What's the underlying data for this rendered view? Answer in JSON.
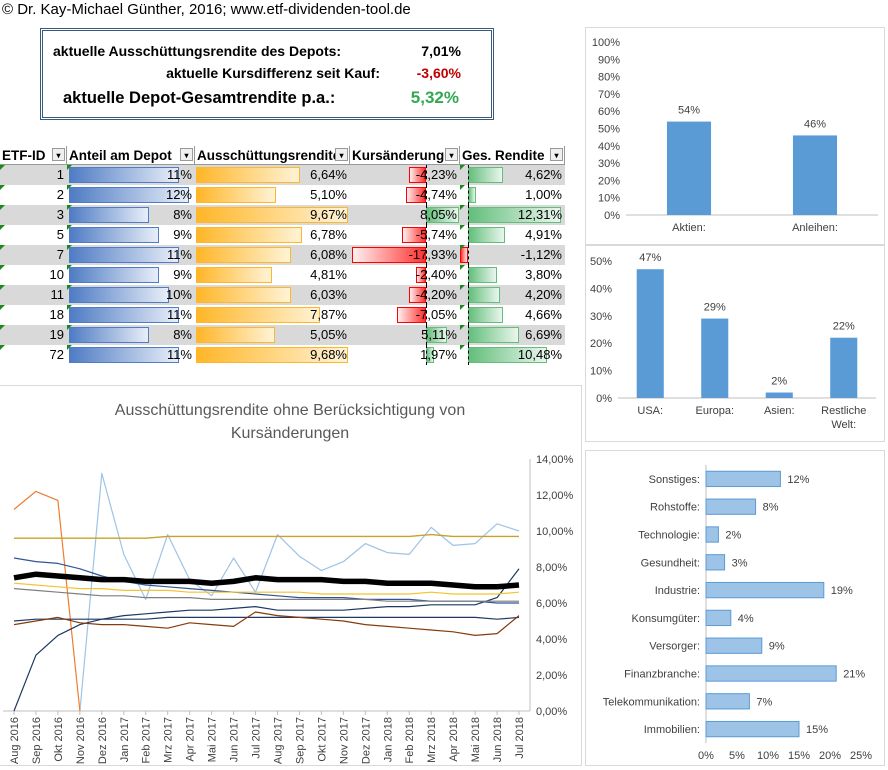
{
  "copyright": "© Dr. Kay-Michael Günther, 2016; www.etf-dividenden-tool.de",
  "summary": {
    "r1_label": "aktuelle Ausschüttungsrendite des Depots:",
    "r1_value": "7,01%",
    "r2_label": "aktuelle Kursdifferenz seit Kauf:",
    "r2_value": "-3,60%",
    "r3_label": "aktuelle Depot-Gesamtrendite p.a.:",
    "r3_value": "5,32%",
    "colors": {
      "negative": "#c00000",
      "positive": "#33a852"
    }
  },
  "table": {
    "headers": [
      "ETF-ID",
      "Anteil am Depot",
      "Ausschüttungsrendite",
      "Kursänderung",
      "Ges. Rendite"
    ],
    "rows": [
      {
        "id": "1",
        "anteil": "11%",
        "anteil_v": 11,
        "aus": "6,64%",
        "aus_v": 6.64,
        "kurs": "-4,23%",
        "kurs_v": -4.23,
        "ges": "4,62%",
        "ges_v": 4.62
      },
      {
        "id": "2",
        "anteil": "12%",
        "anteil_v": 12,
        "aus": "5,10%",
        "aus_v": 5.1,
        "kurs": "-4,74%",
        "kurs_v": -4.74,
        "ges": "1,00%",
        "ges_v": 1.0
      },
      {
        "id": "3",
        "anteil": "8%",
        "anteil_v": 8,
        "aus": "9,67%",
        "aus_v": 9.67,
        "kurs": "8,05%",
        "kurs_v": 8.05,
        "ges": "12,31%",
        "ges_v": 12.31
      },
      {
        "id": "5",
        "anteil": "9%",
        "anteil_v": 9,
        "aus": "6,78%",
        "aus_v": 6.78,
        "kurs": "-5,74%",
        "kurs_v": -5.74,
        "ges": "4,91%",
        "ges_v": 4.91
      },
      {
        "id": "7",
        "anteil": "11%",
        "anteil_v": 11,
        "aus": "6,08%",
        "aus_v": 6.08,
        "kurs": "-17,93%",
        "kurs_v": -17.93,
        "ges": "-1,12%",
        "ges_v": -1.12
      },
      {
        "id": "10",
        "anteil": "9%",
        "anteil_v": 9,
        "aus": "4,81%",
        "aus_v": 4.81,
        "kurs": "-2,40%",
        "kurs_v": -2.4,
        "ges": "3,80%",
        "ges_v": 3.8
      },
      {
        "id": "11",
        "anteil": "10%",
        "anteil_v": 10,
        "aus": "6,03%",
        "aus_v": 6.03,
        "kurs": "-4,20%",
        "kurs_v": -4.2,
        "ges": "4,20%",
        "ges_v": 4.2
      },
      {
        "id": "18",
        "anteil": "11%",
        "anteil_v": 11,
        "aus": "7,87%",
        "aus_v": 7.87,
        "kurs": "-7,05%",
        "kurs_v": -7.05,
        "ges": "4,66%",
        "ges_v": 4.66
      },
      {
        "id": "19",
        "anteil": "8%",
        "anteil_v": 8,
        "aus": "5,05%",
        "aus_v": 5.05,
        "kurs": "5,11%",
        "kurs_v": 5.11,
        "ges": "6,69%",
        "ges_v": 6.69
      },
      {
        "id": "72",
        "anteil": "11%",
        "anteil_v": 11,
        "aus": "9,68%",
        "aus_v": 9.68,
        "kurs": "1,97%",
        "kurs_v": 1.97,
        "ges": "10,48%",
        "ges_v": 10.48
      }
    ]
  },
  "chart_data": [
    {
      "type": "bar",
      "categories": [
        "Aktien:",
        "Anleihen:"
      ],
      "values": [
        54,
        46
      ],
      "data_labels": [
        "54%",
        "46%"
      ],
      "yticks": [
        "0%",
        "10%",
        "20%",
        "30%",
        "40%",
        "50%",
        "60%",
        "70%",
        "80%",
        "90%",
        "100%"
      ],
      "ylim": [
        0,
        100
      ],
      "color": "#5b9bd5"
    },
    {
      "type": "bar",
      "categories": [
        "USA:",
        "Europa:",
        "Asien:",
        "Restliche Welt:"
      ],
      "values": [
        47,
        29,
        2,
        22
      ],
      "data_labels": [
        "47%",
        "29%",
        "2%",
        "22%"
      ],
      "yticks": [
        "0%",
        "10%",
        "20%",
        "30%",
        "40%",
        "50%"
      ],
      "ylim": [
        0,
        50
      ],
      "color": "#5b9bd5"
    },
    {
      "type": "bar",
      "orientation": "horizontal",
      "categories": [
        "Sonstiges:",
        "Rohstoffe:",
        "Technologie:",
        "Gesundheit:",
        "Industrie:",
        "Konsumgüter:",
        "Versorger:",
        "Finanzbranche:",
        "Telekommunikation:",
        "Immobilien:"
      ],
      "values": [
        12,
        8,
        2,
        3,
        19,
        4,
        9,
        21,
        7,
        15
      ],
      "data_labels": [
        "12%",
        "8%",
        "2%",
        "3%",
        "19%",
        "4%",
        "9%",
        "21%",
        "7%",
        "15%"
      ],
      "xticks": [
        "0%",
        "5%",
        "10%",
        "15%",
        "20%",
        "25%"
      ],
      "xlim": [
        0,
        25
      ],
      "color": "#9dc3e6"
    },
    {
      "type": "line",
      "title": "Ausschüttungsrendite ohne Berücksichtigung von Kursänderungen",
      "x": [
        "Aug 2016",
        "Sep 2016",
        "Okt 2016",
        "Nov 2016",
        "Dez 2016",
        "Jan 2017",
        "Feb 2017",
        "Mrz 2017",
        "Apr 2017",
        "Mai 2017",
        "Jun 2017",
        "Jul 2017",
        "Aug 2017",
        "Sep 2017",
        "Okt 2017",
        "Nov 2017",
        "Dez 2017",
        "Jan 2018",
        "Feb 2018",
        "Mrz 2018",
        "Apr 2018",
        "Mai 2018",
        "Jun 2018",
        "Jul 2018"
      ],
      "yticks": [
        "0,00%",
        "2,00%",
        "4,00%",
        "6,00%",
        "8,00%",
        "10,00%",
        "12,00%",
        "14,00%"
      ],
      "ylim": [
        0,
        14
      ],
      "series": [
        {
          "color": "#9dc3e6",
          "width": 1.2,
          "values": [
            null,
            null,
            null,
            0,
            13.2,
            8.7,
            6.2,
            9.8,
            7.3,
            6.4,
            8.5,
            6.6,
            9.8,
            8.6,
            7.8,
            8.3,
            9.3,
            8.8,
            8.7,
            10.2,
            9.2,
            9.3,
            10.4,
            10.0
          ]
        },
        {
          "color": "#ed7d31",
          "width": 1.2,
          "values": [
            11.2,
            12.2,
            11.7,
            0,
            null,
            null,
            null,
            null,
            null,
            null,
            null,
            null,
            null,
            null,
            null,
            null,
            null,
            null,
            null,
            null,
            null,
            null,
            null,
            null
          ]
        },
        {
          "color": "#c9a227",
          "width": 1.4,
          "values": [
            9.6,
            9.6,
            9.6,
            9.6,
            9.6,
            9.6,
            9.6,
            9.7,
            9.7,
            9.7,
            9.7,
            9.7,
            9.7,
            9.7,
            9.7,
            9.7,
            9.7,
            9.7,
            9.7,
            9.8,
            9.7,
            9.7,
            9.7,
            9.7
          ]
        },
        {
          "color": "#1f3864",
          "width": 1.2,
          "values": [
            0,
            3.1,
            4.2,
            4.8,
            5.1,
            5.3,
            5.4,
            5.5,
            5.6,
            5.6,
            5.7,
            5.8,
            5.6,
            5.6,
            5.6,
            5.6,
            5.7,
            5.8,
            5.8,
            5.9,
            5.9,
            5.9,
            6.3,
            7.9
          ]
        },
        {
          "color": "#2f5597",
          "width": 1.2,
          "values": [
            8.5,
            8.3,
            8.2,
            7.9,
            7.5,
            7.2,
            7.0,
            6.9,
            6.8,
            6.7,
            6.6,
            6.5,
            6.4,
            6.3,
            6.3,
            6.3,
            6.2,
            6.2,
            6.2,
            6.1,
            6.1,
            6.1,
            6.0,
            6.0
          ]
        },
        {
          "color": "#000000",
          "width": 5.5,
          "values": [
            7.4,
            7.6,
            7.5,
            7.4,
            7.3,
            7.3,
            7.2,
            7.2,
            7.2,
            7.1,
            7.2,
            7.4,
            7.3,
            7.3,
            7.3,
            7.2,
            7.2,
            7.1,
            7.1,
            7.1,
            7.0,
            6.9,
            6.9,
            7.0
          ]
        },
        {
          "color": "#f4c430",
          "width": 1.2,
          "values": [
            7.1,
            7.0,
            6.9,
            6.8,
            6.8,
            6.7,
            6.7,
            6.7,
            6.6,
            6.6,
            6.6,
            6.6,
            6.6,
            6.6,
            6.5,
            6.5,
            6.5,
            6.5,
            6.5,
            6.6,
            6.5,
            6.5,
            6.5,
            6.6
          ]
        },
        {
          "color": "#7f7f7f",
          "width": 1.2,
          "values": [
            6.8,
            6.7,
            6.6,
            6.5,
            6.4,
            6.4,
            6.3,
            6.3,
            6.3,
            6.2,
            6.2,
            6.2,
            6.2,
            6.2,
            6.2,
            6.2,
            6.2,
            6.1,
            6.1,
            6.1,
            6.1,
            6.1,
            6.1,
            6.1
          ]
        },
        {
          "color": "#203864",
          "width": 1.2,
          "values": [
            5.0,
            5.1,
            5.1,
            5.1,
            5.1,
            5.1,
            5.1,
            5.2,
            5.2,
            5.2,
            5.2,
            5.2,
            5.2,
            5.2,
            5.2,
            5.2,
            5.2,
            5.2,
            5.2,
            5.2,
            5.2,
            5.2,
            5.1,
            5.2
          ]
        },
        {
          "color": "#843c0c",
          "width": 1.2,
          "values": [
            4.8,
            5.0,
            5.2,
            4.9,
            4.8,
            4.8,
            4.7,
            4.6,
            4.9,
            4.8,
            4.7,
            5.5,
            5.3,
            5.2,
            5.1,
            5.0,
            4.8,
            4.7,
            4.6,
            4.5,
            4.4,
            4.2,
            4.3,
            5.3
          ]
        }
      ]
    }
  ]
}
